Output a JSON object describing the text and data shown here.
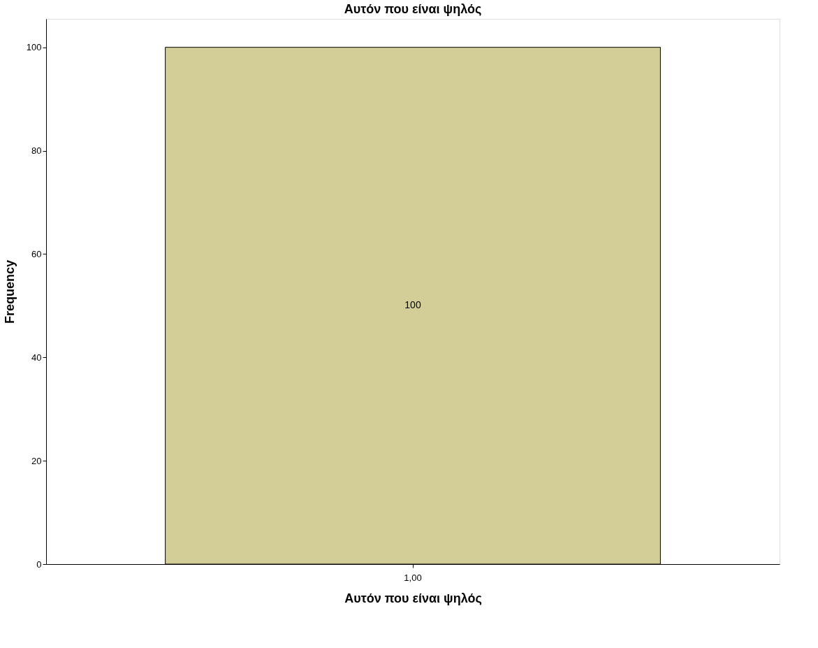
{
  "chart_data": {
    "type": "bar",
    "title": "Αυτόν που είναι ψηλός",
    "xlabel": "Αυτόν που είναι ψηλός",
    "ylabel": "Frequency",
    "categories": [
      "1,00"
    ],
    "series": [
      {
        "color": "#d3ce97",
        "values": [
          100
        ]
      }
    ],
    "ylim": [
      0,
      105.5
    ],
    "yticks": [
      0,
      20,
      40,
      60,
      80,
      100
    ],
    "grid": false,
    "legend": false,
    "data_labels": true
  }
}
